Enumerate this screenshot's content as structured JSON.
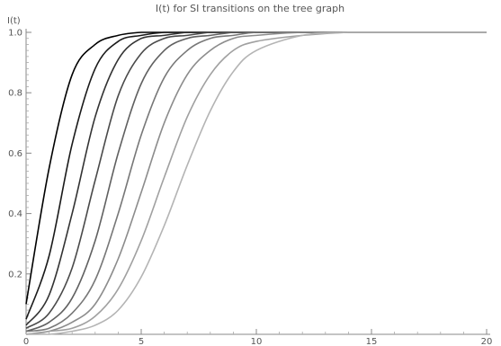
{
  "chart_data": {
    "type": "line",
    "title": "I(t) for SI transitions on the tree graph",
    "ylabel": "I(t)",
    "xlabel": "",
    "xlim": [
      0,
      20
    ],
    "ylim": [
      0,
      1.0
    ],
    "x_ticks": [
      "0",
      "5",
      "10",
      "15",
      "20"
    ],
    "x_tick_values": [
      0,
      5,
      10,
      15,
      20
    ],
    "y_ticks": [
      "0.2",
      "0.4",
      "0.6",
      "0.8",
      "1.0"
    ],
    "y_tick_values": [
      0.2,
      0.4,
      0.6,
      0.8,
      1.0
    ],
    "grid": false,
    "legend": "none",
    "series": [
      {
        "color": "#000000",
        "x": [
          0,
          1,
          2,
          3,
          4,
          5,
          6,
          7,
          8,
          9,
          10,
          12,
          14,
          16,
          18,
          20
        ],
        "values": [
          0.1,
          0.55,
          0.86,
          0.96,
          0.99,
          1.0,
          1.0,
          1.0,
          1.0,
          1.0,
          1.0,
          1.0,
          1.0,
          1.0,
          1.0,
          1.0
        ]
      },
      {
        "color": "#1a1a1a",
        "x": [
          0,
          1,
          2,
          3,
          4,
          5,
          6,
          7,
          8,
          9,
          10,
          12,
          14,
          16,
          18,
          20
        ],
        "values": [
          0.05,
          0.26,
          0.63,
          0.88,
          0.97,
          0.99,
          1.0,
          1.0,
          1.0,
          1.0,
          1.0,
          1.0,
          1.0,
          1.0,
          1.0,
          1.0
        ]
      },
      {
        "color": "#333333",
        "x": [
          0,
          1,
          2,
          3,
          4,
          5,
          6,
          7,
          8,
          9,
          10,
          12,
          14,
          16,
          18,
          20
        ],
        "values": [
          0.03,
          0.13,
          0.4,
          0.72,
          0.91,
          0.98,
          0.99,
          1.0,
          1.0,
          1.0,
          1.0,
          1.0,
          1.0,
          1.0,
          1.0,
          1.0
        ]
      },
      {
        "color": "#4a4a4a",
        "x": [
          0,
          1,
          2,
          3,
          4,
          5,
          6,
          7,
          8,
          9,
          10,
          12,
          14,
          16,
          18,
          20
        ],
        "values": [
          0.02,
          0.07,
          0.22,
          0.51,
          0.79,
          0.93,
          0.98,
          0.99,
          1.0,
          1.0,
          1.0,
          1.0,
          1.0,
          1.0,
          1.0,
          1.0
        ]
      },
      {
        "color": "#606060",
        "x": [
          0,
          1,
          2,
          3,
          4,
          5,
          6,
          7,
          8,
          9,
          10,
          12,
          14,
          16,
          18,
          20
        ],
        "values": [
          0.01,
          0.04,
          0.12,
          0.31,
          0.6,
          0.83,
          0.94,
          0.98,
          0.99,
          1.0,
          1.0,
          1.0,
          1.0,
          1.0,
          1.0,
          1.0
        ]
      },
      {
        "color": "#777777",
        "x": [
          0,
          1,
          2,
          3,
          4,
          5,
          6,
          7,
          8,
          9,
          10,
          12,
          14,
          16,
          18,
          20
        ],
        "values": [
          0.01,
          0.02,
          0.07,
          0.18,
          0.4,
          0.66,
          0.85,
          0.94,
          0.98,
          0.99,
          1.0,
          1.0,
          1.0,
          1.0,
          1.0,
          1.0
        ]
      },
      {
        "color": "#8c8c8c",
        "x": [
          0,
          1,
          2,
          3,
          4,
          5,
          6,
          7,
          8,
          9,
          10,
          12,
          14,
          16,
          18,
          20
        ],
        "values": [
          0.0,
          0.01,
          0.04,
          0.1,
          0.25,
          0.47,
          0.7,
          0.86,
          0.94,
          0.98,
          0.99,
          1.0,
          1.0,
          1.0,
          1.0,
          1.0
        ]
      },
      {
        "color": "#a0a0a0",
        "x": [
          0,
          1,
          2,
          3,
          4,
          5,
          6,
          7,
          8,
          9,
          10,
          12,
          14,
          16,
          18,
          20
        ],
        "values": [
          0.0,
          0.01,
          0.02,
          0.06,
          0.15,
          0.31,
          0.52,
          0.72,
          0.86,
          0.94,
          0.97,
          0.99,
          1.0,
          1.0,
          1.0,
          1.0
        ]
      },
      {
        "color": "#b4b4b4",
        "x": [
          0,
          1,
          2,
          3,
          4,
          5,
          6,
          7,
          8,
          9,
          10,
          12,
          14,
          16,
          18,
          20
        ],
        "values": [
          0.0,
          0.0,
          0.01,
          0.03,
          0.08,
          0.19,
          0.36,
          0.56,
          0.74,
          0.87,
          0.94,
          0.99,
          1.0,
          1.0,
          1.0,
          1.0
        ]
      }
    ]
  }
}
